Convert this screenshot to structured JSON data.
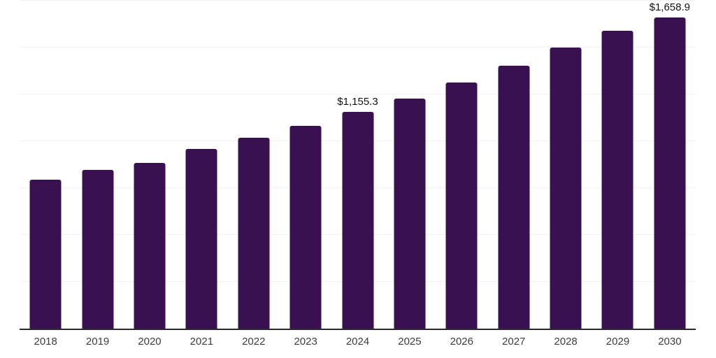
{
  "chart_data": {
    "type": "bar",
    "title": "",
    "xlabel": "",
    "ylabel": "",
    "categories": [
      "2018",
      "2019",
      "2020",
      "2021",
      "2022",
      "2023",
      "2024",
      "2025",
      "2026",
      "2027",
      "2028",
      "2029",
      "2030"
    ],
    "values": [
      794,
      848,
      883,
      960,
      1018,
      1082,
      1155.3,
      1229,
      1315,
      1402,
      1499,
      1588,
      1658.9
    ],
    "labels": [
      null,
      null,
      null,
      null,
      null,
      null,
      "$1,155.3",
      null,
      null,
      null,
      null,
      null,
      "$1,658.9"
    ],
    "ylim": [
      0,
      1750
    ],
    "gridline_step": 250,
    "grid": "horizontal",
    "legend": "none",
    "colors": {
      "bar": "#391150",
      "gridline": "#f1f1f1",
      "axis_line": "#2b2b2b",
      "tick_label": "#3d3d3d",
      "data_label": "#111111",
      "background": "#ffffff"
    }
  }
}
